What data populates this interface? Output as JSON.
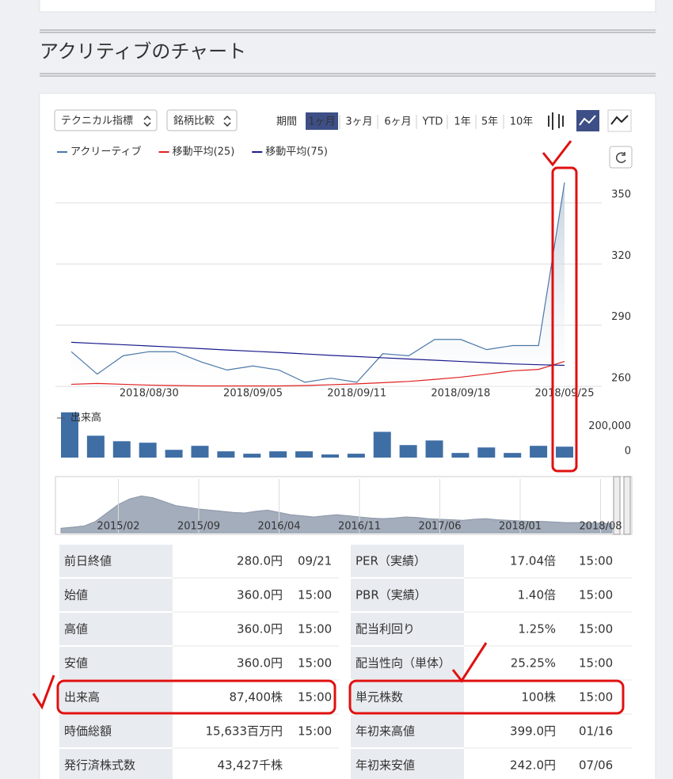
{
  "header": {
    "title": "アクリティブのチャート"
  },
  "controls": {
    "selects": [
      "テクニカル指標",
      "銘柄比較"
    ],
    "period_label": "期間",
    "periods": [
      "1ヶ月",
      "3ヶ月",
      "6ヶ月",
      "YTD",
      "1年",
      "5年",
      "10年"
    ],
    "selected_period": 0
  },
  "chart_data": [
    {
      "type": "line",
      "categories": [
        null,
        null,
        null,
        "2018/08/30",
        null,
        null,
        null,
        "2018/09/05",
        null,
        null,
        null,
        "2018/09/11",
        null,
        null,
        null,
        "2018/09/18",
        null,
        null,
        null,
        "2018/09/25"
      ],
      "series": [
        {
          "name": "アクリーティブ",
          "color": "#4a78a8",
          "values": [
            277,
            266,
            275,
            277,
            277,
            272,
            268,
            270,
            268,
            262,
            264,
            262,
            276,
            275,
            283,
            283,
            278,
            280,
            280,
            360
          ]
        },
        {
          "name": "移動平均(25)",
          "color": "#e02020",
          "values": [
            261,
            261.4,
            261,
            260.6,
            260.4,
            260.2,
            260.2,
            260.2,
            260.2,
            260.4,
            260.8,
            261.2,
            261.8,
            262.4,
            263.4,
            264.5,
            266,
            267.6,
            268.3,
            272.2
          ]
        },
        {
          "name": "移動平均(75)",
          "color": "#1a1a8c",
          "values": [
            281.6,
            281,
            280.4,
            279.8,
            279.2,
            278.5,
            277.8,
            277.2,
            276.6,
            275.9,
            275.2,
            274.6,
            274,
            273.4,
            272.8,
            272.2,
            271.6,
            271,
            270.6,
            270.3
          ]
        }
      ],
      "ylim": [
        260,
        366
      ],
      "yticks": [
        260,
        290,
        320,
        350
      ],
      "grid": true
    },
    {
      "type": "bar",
      "series": [
        {
          "name": "出来高",
          "color": "#3f6ea5",
          "values": [
            362000,
            175000,
            131000,
            119000,
            62000,
            94000,
            50000,
            31000,
            50000,
            50000,
            25000,
            31000,
            206000,
            100000,
            137000,
            37000,
            81000,
            37000,
            94000,
            87400
          ]
        }
      ],
      "ylim": [
        0,
        380000
      ],
      "yticks": [
        0,
        {
          "value": 200000,
          "label": "200,000"
        }
      ]
    },
    {
      "type": "area",
      "color": "#a3adbb",
      "categories": [
        null,
        null,
        null,
        null,
        null,
        "2015/02",
        null,
        null,
        null,
        null,
        null,
        null,
        "2015/09",
        null,
        null,
        null,
        null,
        null,
        null,
        "2016/04",
        null,
        null,
        null,
        null,
        null,
        null,
        "2016/11",
        null,
        null,
        null,
        null,
        null,
        null,
        "2017/06",
        null,
        null,
        null,
        null,
        null,
        null,
        "2018/01",
        null,
        null,
        null,
        null,
        null,
        null,
        "2018/08",
        null
      ],
      "values": [
        8,
        10,
        12,
        20,
        35,
        50,
        60,
        65,
        62,
        55,
        48,
        45,
        42,
        40,
        38,
        36,
        35,
        38,
        40,
        36,
        32,
        30,
        28,
        30,
        32,
        30,
        28,
        26,
        25,
        26,
        28,
        27,
        25,
        24,
        23,
        22,
        24,
        25,
        23,
        22,
        21,
        20,
        20,
        19,
        18,
        18,
        17,
        17,
        16
      ],
      "ylim": [
        0,
        95
      ]
    }
  ],
  "table": {
    "left": [
      [
        "前日終値",
        "280.0円",
        "09/21"
      ],
      [
        "始値",
        "360.0円",
        "15:00"
      ],
      [
        "高値",
        "360.0円",
        "15:00"
      ],
      [
        "安値",
        "360.0円",
        "15:00"
      ],
      [
        "出来高",
        "87,400株",
        "15:00"
      ],
      [
        "時価総額",
        "15,633百万円",
        "15:00"
      ],
      [
        "発行済株式数",
        "43,427千株"
      ]
    ],
    "right": [
      [
        "PER（実績）",
        "17.04倍",
        "15:00"
      ],
      [
        "PBR（実績）",
        "1.40倍",
        "15:00"
      ],
      [
        "配当利回り",
        "1.25%",
        "15:00"
      ],
      [
        "配当性向（単体）",
        "25.25%",
        "15:00"
      ],
      [
        "単元株数",
        "100株",
        "15:00"
      ],
      [
        "年初来高値",
        "399.0円",
        "01/16"
      ],
      [
        "年初来安値",
        "242.0円",
        "07/06"
      ]
    ]
  }
}
